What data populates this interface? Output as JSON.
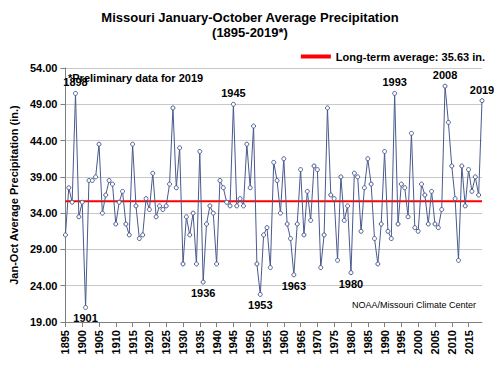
{
  "chart_data": {
    "type": "line",
    "title": "Missouri January-October Average Precipitation",
    "subtitle": "(1895-2019*)",
    "y_label": "Jan-Oct Average Precipitation (in.)",
    "color": "#4a5a8e",
    "marker": "circle",
    "grid": true,
    "x": [
      1895,
      1896,
      1897,
      1898,
      1899,
      1900,
      1901,
      1902,
      1903,
      1904,
      1905,
      1906,
      1907,
      1908,
      1909,
      1910,
      1911,
      1912,
      1913,
      1914,
      1915,
      1916,
      1917,
      1918,
      1919,
      1920,
      1921,
      1922,
      1923,
      1924,
      1925,
      1926,
      1927,
      1928,
      1929,
      1930,
      1931,
      1932,
      1933,
      1934,
      1935,
      1936,
      1937,
      1938,
      1939,
      1940,
      1941,
      1942,
      1943,
      1944,
      1945,
      1946,
      1947,
      1948,
      1949,
      1950,
      1951,
      1952,
      1953,
      1954,
      1955,
      1956,
      1957,
      1958,
      1959,
      1960,
      1961,
      1962,
      1963,
      1964,
      1965,
      1966,
      1967,
      1968,
      1969,
      1970,
      1971,
      1972,
      1973,
      1974,
      1975,
      1976,
      1977,
      1978,
      1979,
      1980,
      1981,
      1982,
      1983,
      1984,
      1985,
      1986,
      1987,
      1988,
      1989,
      1990,
      1991,
      1992,
      1993,
      1994,
      1995,
      1996,
      1997,
      1998,
      1999,
      2000,
      2001,
      2002,
      2003,
      2004,
      2005,
      2006,
      2007,
      2008,
      2009,
      2010,
      2011,
      2012,
      2013,
      2014,
      2015,
      2016,
      2017,
      2018,
      2019
    ],
    "values": [
      31.0,
      37.5,
      35.5,
      50.5,
      33.5,
      35.5,
      21.0,
      38.5,
      38.5,
      39.0,
      43.5,
      34.0,
      36.5,
      38.5,
      38.0,
      32.5,
      35.5,
      37.0,
      32.5,
      31.0,
      43.5,
      35.0,
      30.5,
      31.0,
      36.0,
      34.5,
      39.5,
      33.5,
      35.0,
      34.5,
      35.0,
      38.0,
      48.5,
      37.5,
      43.0,
      27.0,
      33.5,
      31.0,
      34.0,
      27.0,
      42.5,
      24.5,
      32.5,
      35.0,
      34.0,
      27.0,
      38.5,
      37.5,
      35.5,
      35.0,
      49.0,
      35.0,
      36.0,
      35.0,
      43.5,
      37.5,
      46.0,
      27.0,
      22.8,
      31.0,
      32.0,
      26.5,
      41.0,
      38.5,
      34.0,
      41.5,
      32.5,
      30.5,
      25.5,
      32.5,
      40.0,
      31.0,
      37.0,
      33.0,
      40.5,
      40.0,
      26.5,
      31.0,
      48.5,
      36.5,
      36.0,
      27.5,
      39.0,
      33.0,
      35.0,
      25.8,
      39.5,
      39.0,
      31.5,
      37.5,
      41.5,
      38.0,
      30.5,
      27.0,
      32.5,
      42.5,
      31.5,
      30.5,
      50.5,
      32.5,
      38.0,
      37.5,
      33.5,
      45.0,
      32.0,
      31.5,
      38.0,
      36.5,
      32.5,
      37.0,
      32.5,
      32.0,
      34.5,
      51.5,
      46.5,
      40.5,
      36.0,
      27.5,
      40.5,
      35.0,
      40.0,
      37.0,
      39.0,
      36.5,
      49.5
    ],
    "xlim": [
      1895,
      2019
    ],
    "xticks": [
      1895,
      1900,
      1905,
      1910,
      1915,
      1920,
      1925,
      1930,
      1935,
      1940,
      1945,
      1950,
      1955,
      1960,
      1965,
      1970,
      1975,
      1980,
      1985,
      1990,
      1995,
      2000,
      2005,
      2010,
      2015
    ],
    "ylim": [
      19,
      54
    ],
    "yticks": [
      {
        "value": 19,
        "label": "19.00"
      },
      {
        "value": 24,
        "label": "24.00"
      },
      {
        "value": 29,
        "label": "29.00"
      },
      {
        "value": 34,
        "label": "34.00"
      },
      {
        "value": 39,
        "label": "39.00"
      },
      {
        "value": 44,
        "label": "44.00"
      },
      {
        "value": 49,
        "label": "49.00"
      },
      {
        "value": 54,
        "label": "54.00"
      }
    ],
    "average": {
      "value": 35.63,
      "label": "Long-term average: 35.63 in.",
      "color": "#ff0000"
    },
    "annotations": [
      {
        "x": 1898,
        "text": "1898"
      },
      {
        "x": 1901,
        "text": "1901"
      },
      {
        "x": 1936,
        "text": "1936"
      },
      {
        "x": 1945,
        "text": "1945"
      },
      {
        "x": 1953,
        "text": "1953"
      },
      {
        "x": 1963,
        "text": "1963"
      },
      {
        "x": 1980,
        "text": "1980"
      },
      {
        "x": 1993,
        "text": "1993"
      },
      {
        "x": 2008,
        "text": "2008"
      },
      {
        "x": 2019,
        "text": "2019"
      }
    ],
    "notes": [
      "*Preliminary data for 2019",
      "NOAA/Missouri Climate Center"
    ]
  }
}
